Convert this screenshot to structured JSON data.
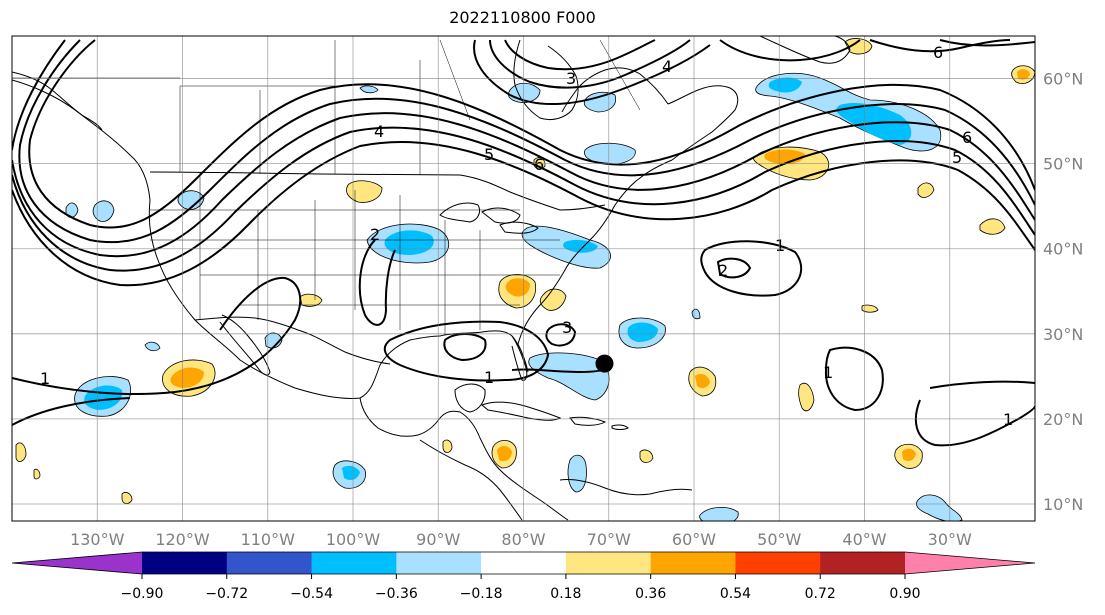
{
  "title": "2022110800 F000",
  "map": {
    "lon_range": [
      -140,
      -20
    ],
    "lat_range": [
      8,
      65
    ],
    "lon_ticks": [
      {
        "value": -130,
        "label": "130°W"
      },
      {
        "value": -120,
        "label": "120°W"
      },
      {
        "value": -110,
        "label": "110°W"
      },
      {
        "value": -100,
        "label": "100°W"
      },
      {
        "value": -90,
        "label": "90°W"
      },
      {
        "value": -80,
        "label": "80°W"
      },
      {
        "value": -70,
        "label": "70°W"
      },
      {
        "value": -60,
        "label": "60°W"
      },
      {
        "value": -50,
        "label": "50°W"
      },
      {
        "value": -40,
        "label": "40°W"
      },
      {
        "value": -30,
        "label": "30°W"
      }
    ],
    "lat_ticks": [
      {
        "value": 60,
        "label": "60°N"
      },
      {
        "value": 50,
        "label": "50°N"
      },
      {
        "value": 40,
        "label": "40°N"
      },
      {
        "value": 30,
        "label": "30°N"
      },
      {
        "value": 20,
        "label": "20°N"
      },
      {
        "value": 10,
        "label": "10°N"
      }
    ],
    "grid": true,
    "storm_marker": {
      "lon": -70.5,
      "lat": 26.5
    },
    "contour_labels": [
      "1",
      "1",
      "1",
      "1",
      "1",
      "2",
      "2",
      "3",
      "3",
      "4",
      "4",
      "5",
      "5",
      "6",
      "6",
      "6"
    ]
  },
  "colorbar": {
    "ticks": [
      "−0.90",
      "−0.72",
      "−0.54",
      "−0.36",
      "−0.18",
      "0.18",
      "0.36",
      "0.54",
      "0.72",
      "0.90"
    ],
    "colors": [
      "#9933cc",
      "#000080",
      "#3355cc",
      "#00bfff",
      "#aae0ff",
      "#ffffff",
      "#ffe680",
      "#ffa500",
      "#ff4000",
      "#b22222",
      "#ff80aa"
    ],
    "extend": "both"
  }
}
